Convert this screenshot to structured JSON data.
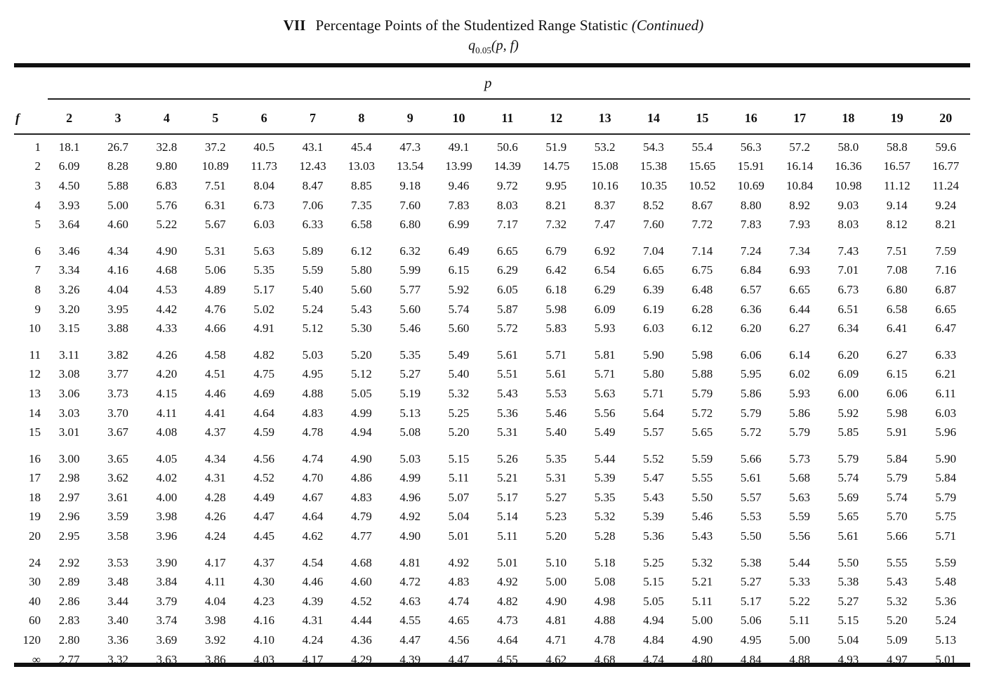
{
  "header": {
    "roman": "VII",
    "title": "Percentage Points of the Studentized Range Statistic",
    "continued": "(Continued)",
    "subtitle_q": "q",
    "subtitle_sub": "0.05",
    "subtitle_args": "(p, f)"
  },
  "table": {
    "p_label": "p",
    "f_label": "f",
    "columns": [
      "2",
      "3",
      "4",
      "5",
      "6",
      "7",
      "8",
      "9",
      "10",
      "11",
      "12",
      "13",
      "14",
      "15",
      "16",
      "17",
      "18",
      "19",
      "20"
    ],
    "groups": [
      [
        {
          "f": "1",
          "values": [
            "18.1",
            "26.7",
            "32.8",
            "37.2",
            "40.5",
            "43.1",
            "45.4",
            "47.3",
            "49.1",
            "50.6",
            "51.9",
            "53.2",
            "54.3",
            "55.4",
            "56.3",
            "57.2",
            "58.0",
            "58.8",
            "59.6"
          ]
        },
        {
          "f": "2",
          "values": [
            "6.09",
            "8.28",
            "9.80",
            "10.89",
            "11.73",
            "12.43",
            "13.03",
            "13.54",
            "13.99",
            "14.39",
            "14.75",
            "15.08",
            "15.38",
            "15.65",
            "15.91",
            "16.14",
            "16.36",
            "16.57",
            "16.77"
          ]
        },
        {
          "f": "3",
          "values": [
            "4.50",
            "5.88",
            "6.83",
            "7.51",
            "8.04",
            "8.47",
            "8.85",
            "9.18",
            "9.46",
            "9.72",
            "9.95",
            "10.16",
            "10.35",
            "10.52",
            "10.69",
            "10.84",
            "10.98",
            "11.12",
            "11.24"
          ]
        },
        {
          "f": "4",
          "values": [
            "3.93",
            "5.00",
            "5.76",
            "6.31",
            "6.73",
            "7.06",
            "7.35",
            "7.60",
            "7.83",
            "8.03",
            "8.21",
            "8.37",
            "8.52",
            "8.67",
            "8.80",
            "8.92",
            "9.03",
            "9.14",
            "9.24"
          ]
        },
        {
          "f": "5",
          "values": [
            "3.64",
            "4.60",
            "5.22",
            "5.67",
            "6.03",
            "6.33",
            "6.58",
            "6.80",
            "6.99",
            "7.17",
            "7.32",
            "7.47",
            "7.60",
            "7.72",
            "7.83",
            "7.93",
            "8.03",
            "8.12",
            "8.21"
          ]
        }
      ],
      [
        {
          "f": "6",
          "values": [
            "3.46",
            "4.34",
            "4.90",
            "5.31",
            "5.63",
            "5.89",
            "6.12",
            "6.32",
            "6.49",
            "6.65",
            "6.79",
            "6.92",
            "7.04",
            "7.14",
            "7.24",
            "7.34",
            "7.43",
            "7.51",
            "7.59"
          ]
        },
        {
          "f": "7",
          "values": [
            "3.34",
            "4.16",
            "4.68",
            "5.06",
            "5.35",
            "5.59",
            "5.80",
            "5.99",
            "6.15",
            "6.29",
            "6.42",
            "6.54",
            "6.65",
            "6.75",
            "6.84",
            "6.93",
            "7.01",
            "7.08",
            "7.16"
          ]
        },
        {
          "f": "8",
          "values": [
            "3.26",
            "4.04",
            "4.53",
            "4.89",
            "5.17",
            "5.40",
            "5.60",
            "5.77",
            "5.92",
            "6.05",
            "6.18",
            "6.29",
            "6.39",
            "6.48",
            "6.57",
            "6.65",
            "6.73",
            "6.80",
            "6.87"
          ]
        },
        {
          "f": "9",
          "values": [
            "3.20",
            "3.95",
            "4.42",
            "4.76",
            "5.02",
            "5.24",
            "5.43",
            "5.60",
            "5.74",
            "5.87",
            "5.98",
            "6.09",
            "6.19",
            "6.28",
            "6.36",
            "6.44",
            "6.51",
            "6.58",
            "6.65"
          ]
        },
        {
          "f": "10",
          "values": [
            "3.15",
            "3.88",
            "4.33",
            "4.66",
            "4.91",
            "5.12",
            "5.30",
            "5.46",
            "5.60",
            "5.72",
            "5.83",
            "5.93",
            "6.03",
            "6.12",
            "6.20",
            "6.27",
            "6.34",
            "6.41",
            "6.47"
          ]
        }
      ],
      [
        {
          "f": "11",
          "values": [
            "3.11",
            "3.82",
            "4.26",
            "4.58",
            "4.82",
            "5.03",
            "5.20",
            "5.35",
            "5.49",
            "5.61",
            "5.71",
            "5.81",
            "5.90",
            "5.98",
            "6.06",
            "6.14",
            "6.20",
            "6.27",
            "6.33"
          ]
        },
        {
          "f": "12",
          "values": [
            "3.08",
            "3.77",
            "4.20",
            "4.51",
            "4.75",
            "4.95",
            "5.12",
            "5.27",
            "5.40",
            "5.51",
            "5.61",
            "5.71",
            "5.80",
            "5.88",
            "5.95",
            "6.02",
            "6.09",
            "6.15",
            "6.21"
          ]
        },
        {
          "f": "13",
          "values": [
            "3.06",
            "3.73",
            "4.15",
            "4.46",
            "4.69",
            "4.88",
            "5.05",
            "5.19",
            "5.32",
            "5.43",
            "5.53",
            "5.63",
            "5.71",
            "5.79",
            "5.86",
            "5.93",
            "6.00",
            "6.06",
            "6.11"
          ]
        },
        {
          "f": "14",
          "values": [
            "3.03",
            "3.70",
            "4.11",
            "4.41",
            "4.64",
            "4.83",
            "4.99",
            "5.13",
            "5.25",
            "5.36",
            "5.46",
            "5.56",
            "5.64",
            "5.72",
            "5.79",
            "5.86",
            "5.92",
            "5.98",
            "6.03"
          ]
        },
        {
          "f": "15",
          "values": [
            "3.01",
            "3.67",
            "4.08",
            "4.37",
            "4.59",
            "4.78",
            "4.94",
            "5.08",
            "5.20",
            "5.31",
            "5.40",
            "5.49",
            "5.57",
            "5.65",
            "5.72",
            "5.79",
            "5.85",
            "5.91",
            "5.96"
          ]
        }
      ],
      [
        {
          "f": "16",
          "values": [
            "3.00",
            "3.65",
            "4.05",
            "4.34",
            "4.56",
            "4.74",
            "4.90",
            "5.03",
            "5.15",
            "5.26",
            "5.35",
            "5.44",
            "5.52",
            "5.59",
            "5.66",
            "5.73",
            "5.79",
            "5.84",
            "5.90"
          ]
        },
        {
          "f": "17",
          "values": [
            "2.98",
            "3.62",
            "4.02",
            "4.31",
            "4.52",
            "4.70",
            "4.86",
            "4.99",
            "5.11",
            "5.21",
            "5.31",
            "5.39",
            "5.47",
            "5.55",
            "5.61",
            "5.68",
            "5.74",
            "5.79",
            "5.84"
          ]
        },
        {
          "f": "18",
          "values": [
            "2.97",
            "3.61",
            "4.00",
            "4.28",
            "4.49",
            "4.67",
            "4.83",
            "4.96",
            "5.07",
            "5.17",
            "5.27",
            "5.35",
            "5.43",
            "5.50",
            "5.57",
            "5.63",
            "5.69",
            "5.74",
            "5.79"
          ]
        },
        {
          "f": "19",
          "values": [
            "2.96",
            "3.59",
            "3.98",
            "4.26",
            "4.47",
            "4.64",
            "4.79",
            "4.92",
            "5.04",
            "5.14",
            "5.23",
            "5.32",
            "5.39",
            "5.46",
            "5.53",
            "5.59",
            "5.65",
            "5.70",
            "5.75"
          ]
        },
        {
          "f": "20",
          "values": [
            "2.95",
            "3.58",
            "3.96",
            "4.24",
            "4.45",
            "4.62",
            "4.77",
            "4.90",
            "5.01",
            "5.11",
            "5.20",
            "5.28",
            "5.36",
            "5.43",
            "5.50",
            "5.56",
            "5.61",
            "5.66",
            "5.71"
          ]
        }
      ],
      [
        {
          "f": "24",
          "values": [
            "2.92",
            "3.53",
            "3.90",
            "4.17",
            "4.37",
            "4.54",
            "4.68",
            "4.81",
            "4.92",
            "5.01",
            "5.10",
            "5.18",
            "5.25",
            "5.32",
            "5.38",
            "5.44",
            "5.50",
            "5.55",
            "5.59"
          ]
        },
        {
          "f": "30",
          "values": [
            "2.89",
            "3.48",
            "3.84",
            "4.11",
            "4.30",
            "4.46",
            "4.60",
            "4.72",
            "4.83",
            "4.92",
            "5.00",
            "5.08",
            "5.15",
            "5.21",
            "5.27",
            "5.33",
            "5.38",
            "5.43",
            "5.48"
          ]
        },
        {
          "f": "40",
          "values": [
            "2.86",
            "3.44",
            "3.79",
            "4.04",
            "4.23",
            "4.39",
            "4.52",
            "4.63",
            "4.74",
            "4.82",
            "4.90",
            "4.98",
            "5.05",
            "5.11",
            "5.17",
            "5.22",
            "5.27",
            "5.32",
            "5.36"
          ]
        },
        {
          "f": "60",
          "values": [
            "2.83",
            "3.40",
            "3.74",
            "3.98",
            "4.16",
            "4.31",
            "4.44",
            "4.55",
            "4.65",
            "4.73",
            "4.81",
            "4.88",
            "4.94",
            "5.00",
            "5.06",
            "5.11",
            "5.15",
            "5.20",
            "5.24"
          ]
        },
        {
          "f": "120",
          "values": [
            "2.80",
            "3.36",
            "3.69",
            "3.92",
            "4.10",
            "4.24",
            "4.36",
            "4.47",
            "4.56",
            "4.64",
            "4.71",
            "4.78",
            "4.84",
            "4.90",
            "4.95",
            "5.00",
            "5.04",
            "5.09",
            "5.13"
          ]
        },
        {
          "f": "∞",
          "values": [
            "2.77",
            "3.32",
            "3.63",
            "3.86",
            "4.03",
            "4.17",
            "4.29",
            "4.39",
            "4.47",
            "4.55",
            "4.62",
            "4.68",
            "4.74",
            "4.80",
            "4.84",
            "4.88",
            "4.93",
            "4.97",
            "5.01"
          ]
        }
      ]
    ]
  }
}
